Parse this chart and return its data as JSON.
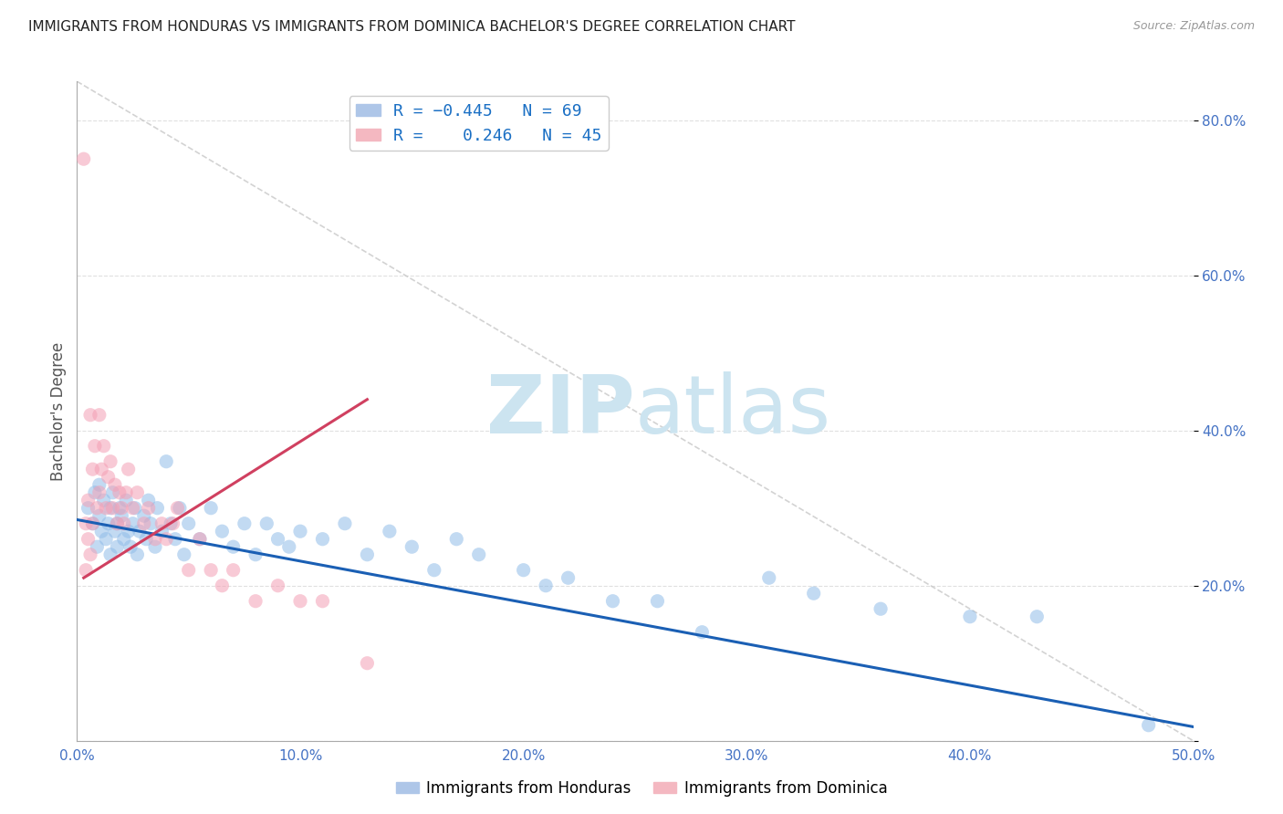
{
  "title": "IMMIGRANTS FROM HONDURAS VS IMMIGRANTS FROM DOMINICA BACHELOR'S DEGREE CORRELATION CHART",
  "source": "Source: ZipAtlas.com",
  "ylabel": "Bachelor's Degree",
  "xlim": [
    0.0,
    0.5
  ],
  "ylim": [
    0.0,
    0.85
  ],
  "xticks": [
    0.0,
    0.1,
    0.2,
    0.3,
    0.4,
    0.5
  ],
  "yticks": [
    0.0,
    0.2,
    0.4,
    0.6,
    0.8
  ],
  "blue_scatter_x": [
    0.005,
    0.007,
    0.008,
    0.009,
    0.01,
    0.01,
    0.011,
    0.012,
    0.013,
    0.014,
    0.015,
    0.015,
    0.016,
    0.017,
    0.018,
    0.018,
    0.019,
    0.02,
    0.021,
    0.022,
    0.023,
    0.024,
    0.025,
    0.026,
    0.027,
    0.028,
    0.03,
    0.031,
    0.032,
    0.033,
    0.035,
    0.036,
    0.038,
    0.04,
    0.042,
    0.044,
    0.046,
    0.048,
    0.05,
    0.055,
    0.06,
    0.065,
    0.07,
    0.075,
    0.08,
    0.085,
    0.09,
    0.095,
    0.1,
    0.11,
    0.12,
    0.13,
    0.14,
    0.15,
    0.16,
    0.17,
    0.18,
    0.2,
    0.21,
    0.22,
    0.24,
    0.26,
    0.28,
    0.31,
    0.33,
    0.36,
    0.4,
    0.43,
    0.48
  ],
  "blue_scatter_y": [
    0.3,
    0.28,
    0.32,
    0.25,
    0.29,
    0.33,
    0.27,
    0.31,
    0.26,
    0.28,
    0.3,
    0.24,
    0.32,
    0.27,
    0.28,
    0.25,
    0.3,
    0.29,
    0.26,
    0.31,
    0.27,
    0.25,
    0.28,
    0.3,
    0.24,
    0.27,
    0.29,
    0.26,
    0.31,
    0.28,
    0.25,
    0.3,
    0.27,
    0.36,
    0.28,
    0.26,
    0.3,
    0.24,
    0.28,
    0.26,
    0.3,
    0.27,
    0.25,
    0.28,
    0.24,
    0.28,
    0.26,
    0.25,
    0.27,
    0.26,
    0.28,
    0.24,
    0.27,
    0.25,
    0.22,
    0.26,
    0.24,
    0.22,
    0.2,
    0.21,
    0.18,
    0.18,
    0.14,
    0.21,
    0.19,
    0.17,
    0.16,
    0.16,
    0.02
  ],
  "pink_scatter_x": [
    0.003,
    0.004,
    0.004,
    0.005,
    0.005,
    0.006,
    0.006,
    0.007,
    0.007,
    0.008,
    0.009,
    0.01,
    0.01,
    0.011,
    0.012,
    0.013,
    0.014,
    0.015,
    0.016,
    0.017,
    0.018,
    0.019,
    0.02,
    0.021,
    0.022,
    0.023,
    0.025,
    0.027,
    0.03,
    0.032,
    0.035,
    0.038,
    0.04,
    0.043,
    0.045,
    0.05,
    0.055,
    0.06,
    0.065,
    0.07,
    0.08,
    0.09,
    0.1,
    0.11,
    0.13
  ],
  "pink_scatter_y": [
    0.75,
    0.28,
    0.22,
    0.31,
    0.26,
    0.42,
    0.24,
    0.35,
    0.28,
    0.38,
    0.3,
    0.42,
    0.32,
    0.35,
    0.38,
    0.3,
    0.34,
    0.36,
    0.3,
    0.33,
    0.28,
    0.32,
    0.3,
    0.28,
    0.32,
    0.35,
    0.3,
    0.32,
    0.28,
    0.3,
    0.26,
    0.28,
    0.26,
    0.28,
    0.3,
    0.22,
    0.26,
    0.22,
    0.2,
    0.22,
    0.18,
    0.2,
    0.18,
    0.18,
    0.1
  ],
  "blue_trend_x": [
    0.0,
    0.5
  ],
  "blue_trend_y": [
    0.285,
    0.018
  ],
  "pink_trend_x": [
    0.003,
    0.13
  ],
  "pink_trend_y": [
    0.21,
    0.44
  ],
  "diag_line_x": [
    0.0,
    0.5
  ],
  "diag_line_y": [
    0.85,
    0.0
  ],
  "blue_color": "#90bce8",
  "pink_color": "#f4a0b5",
  "blue_trend_color": "#1a5fb4",
  "pink_trend_color": "#d04060",
  "diag_color": "#c8c8c8",
  "watermark_zip": "ZIP",
  "watermark_atlas": "atlas",
  "watermark_color": "#cce4f0",
  "grid_color": "#e0e0e0",
  "axis_label_color": "#4472c4",
  "background_color": "#ffffff",
  "title_fontsize": 11,
  "source_fontsize": 9,
  "tick_fontsize": 11,
  "ylabel_fontsize": 12
}
